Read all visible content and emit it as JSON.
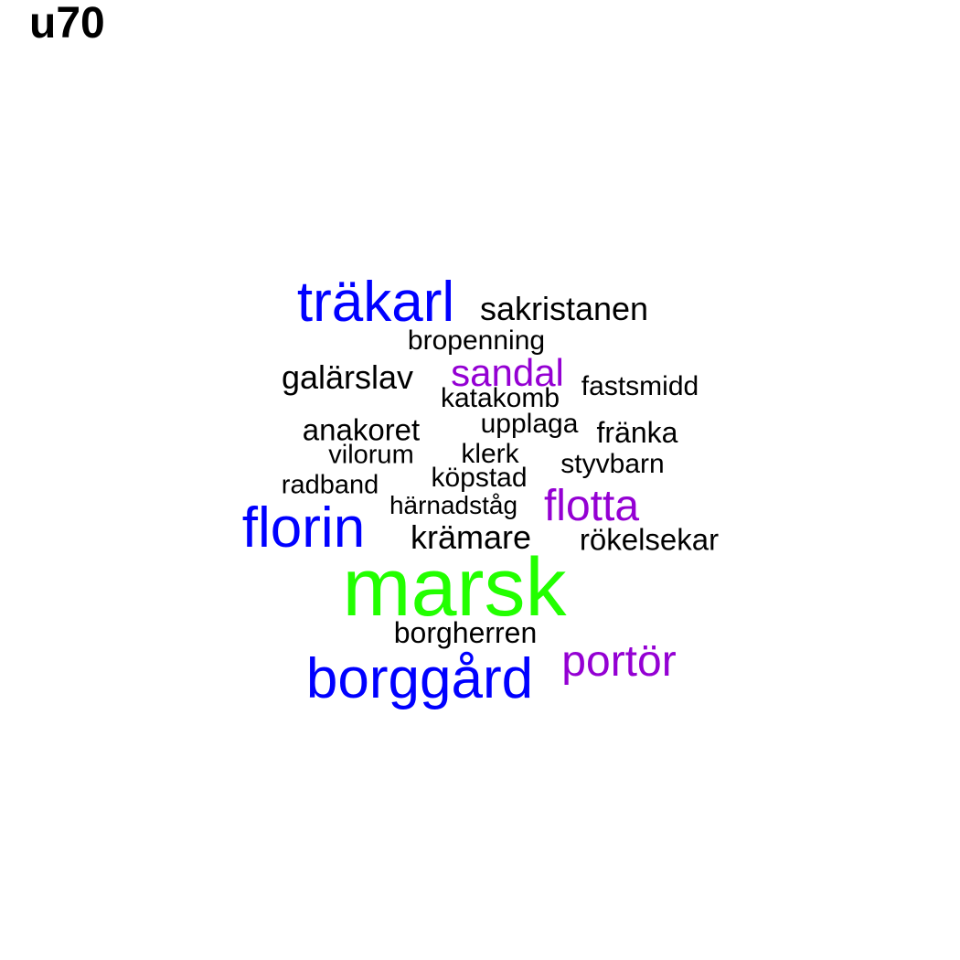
{
  "title": "u70",
  "colors": {
    "black": "#000000",
    "blue": "#0000ff",
    "purple": "#9400d3",
    "green": "#22ff00"
  },
  "words": [
    {
      "text": "träkarl",
      "color": "blue"
    },
    {
      "text": "sakristanen",
      "color": "black"
    },
    {
      "text": "bropenning",
      "color": "black"
    },
    {
      "text": "galärslav",
      "color": "black"
    },
    {
      "text": "sandal",
      "color": "purple"
    },
    {
      "text": "fastsmidd",
      "color": "black"
    },
    {
      "text": "katakomb",
      "color": "black"
    },
    {
      "text": "anakoret",
      "color": "black"
    },
    {
      "text": "upplaga",
      "color": "black"
    },
    {
      "text": "fränka",
      "color": "black"
    },
    {
      "text": "vilorum",
      "color": "black"
    },
    {
      "text": "klerk",
      "color": "black"
    },
    {
      "text": "styvbarn",
      "color": "black"
    },
    {
      "text": "radband",
      "color": "black"
    },
    {
      "text": "köpstad",
      "color": "black"
    },
    {
      "text": "härnadståg",
      "color": "black"
    },
    {
      "text": "flotta",
      "color": "purple"
    },
    {
      "text": "florin",
      "color": "blue"
    },
    {
      "text": "krämare",
      "color": "black"
    },
    {
      "text": "rökelsekar",
      "color": "black"
    },
    {
      "text": "marsk",
      "color": "green"
    },
    {
      "text": "borgherren",
      "color": "black"
    },
    {
      "text": "portör",
      "color": "purple"
    },
    {
      "text": "borggård",
      "color": "blue"
    }
  ]
}
